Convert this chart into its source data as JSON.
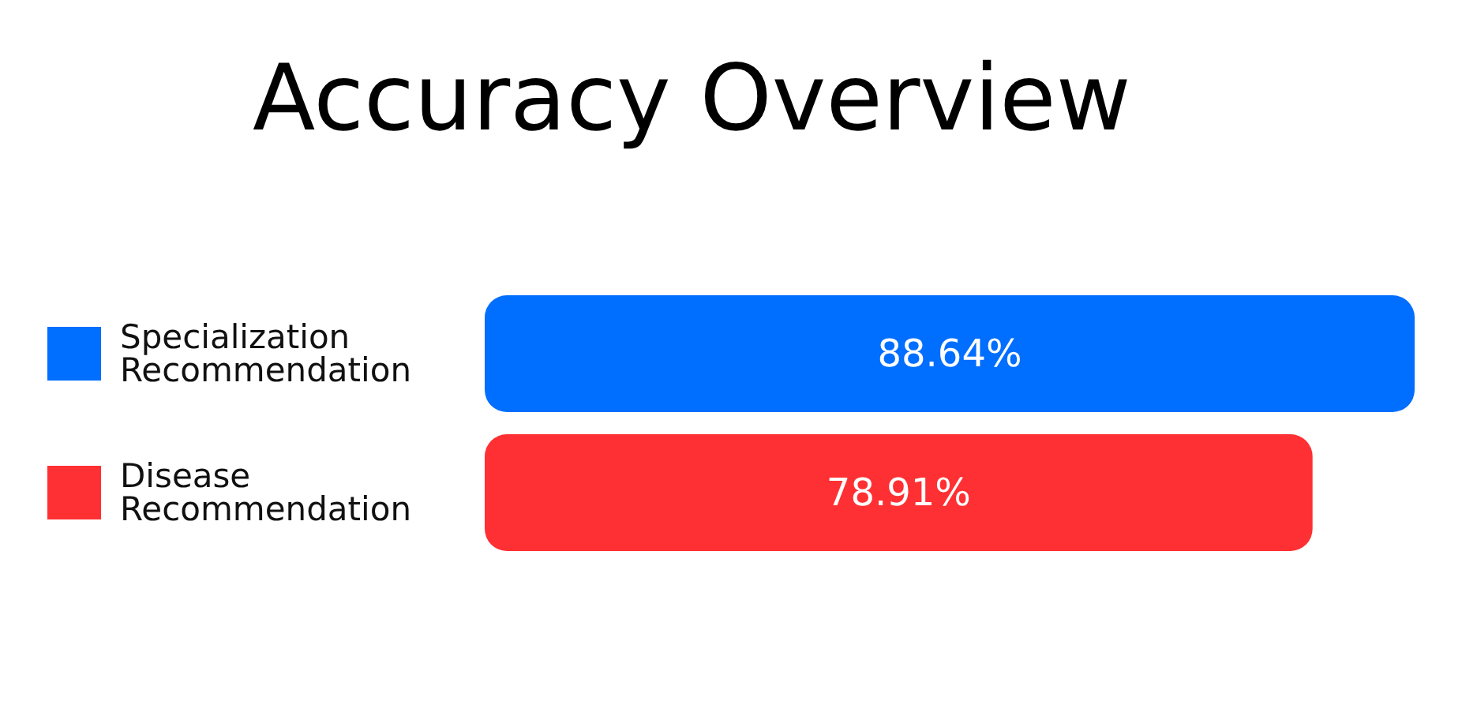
{
  "chart_data": {
    "type": "bar",
    "orientation": "horizontal",
    "title": "Accuracy Overview",
    "categories": [
      "Specialization Recommendation",
      "Disease Recommendation"
    ],
    "values": [
      88.64,
      78.91
    ],
    "colors": [
      "#006eff",
      "#ff3033"
    ],
    "value_labels": [
      "88.64%",
      "78.91%"
    ]
  }
}
